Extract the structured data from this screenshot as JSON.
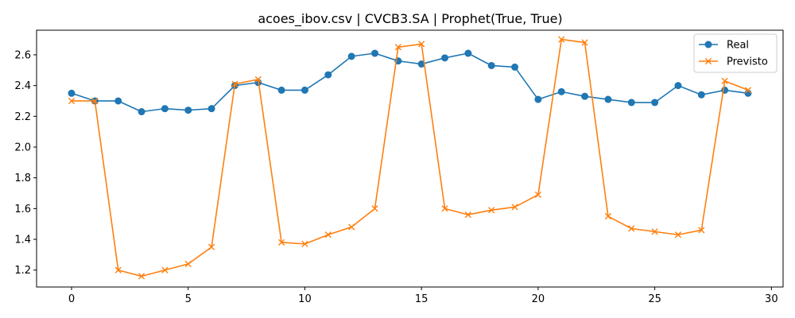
{
  "chart_data": {
    "type": "line",
    "title": "acoes_ibov.csv | CVCB3.SA | Prophet(True, True)",
    "xlabel": "",
    "ylabel": "",
    "xlim": [
      -1.5,
      30.5
    ],
    "ylim": [
      1.09,
      2.76
    ],
    "xticks": [
      0,
      5,
      10,
      15,
      20,
      25,
      30
    ],
    "yticks": [
      1.2,
      1.4,
      1.6,
      1.8,
      2.0,
      2.2,
      2.4,
      2.6
    ],
    "grid": false,
    "legend_position": "top-right",
    "x": [
      0,
      1,
      2,
      3,
      4,
      5,
      6,
      7,
      8,
      9,
      10,
      11,
      12,
      13,
      14,
      15,
      16,
      17,
      18,
      19,
      20,
      21,
      22,
      23,
      24,
      25,
      26,
      27,
      28,
      29
    ],
    "series": [
      {
        "name": "Real",
        "color": "#1f77b4",
        "marker": "circle",
        "values": [
          2.35,
          2.3,
          2.3,
          2.23,
          2.25,
          2.24,
          2.25,
          2.4,
          2.42,
          2.37,
          2.37,
          2.47,
          2.59,
          2.61,
          2.56,
          2.54,
          2.58,
          2.61,
          2.53,
          2.52,
          2.31,
          2.36,
          2.33,
          2.31,
          2.29,
          2.29,
          2.4,
          2.34,
          2.37,
          2.35
        ]
      },
      {
        "name": "Previsto",
        "color": "#ff7f0e",
        "marker": "x",
        "values": [
          2.3,
          2.3,
          1.2,
          1.16,
          1.2,
          1.24,
          1.35,
          2.41,
          2.44,
          1.38,
          1.37,
          1.43,
          1.48,
          1.6,
          2.65,
          2.67,
          1.6,
          1.56,
          1.59,
          1.61,
          1.69,
          2.7,
          2.68,
          1.55,
          1.47,
          1.45,
          1.43,
          1.46,
          2.43,
          2.37
        ]
      }
    ]
  }
}
